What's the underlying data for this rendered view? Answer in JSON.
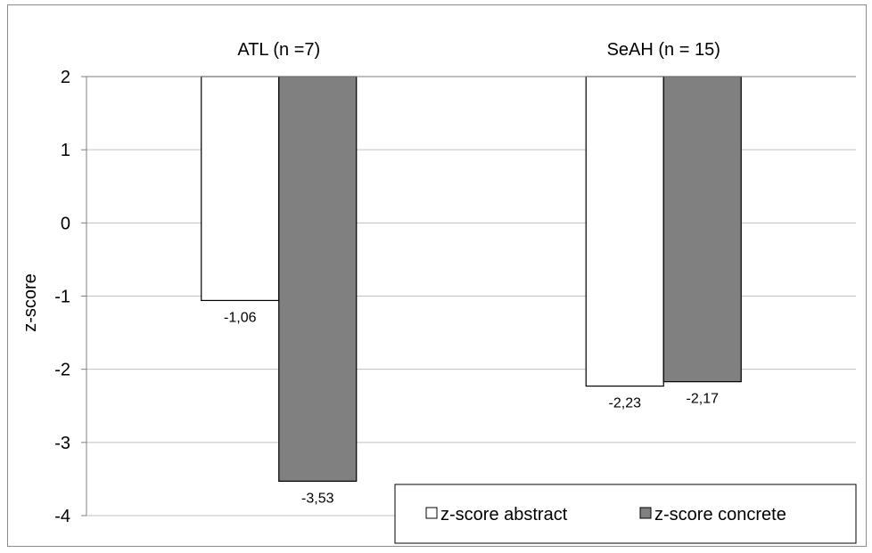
{
  "chart_data": {
    "type": "bar",
    "categories": [
      "ATL (n =7)",
      "SeAH (n = 15)"
    ],
    "series": [
      {
        "name": "z-score abstract",
        "values": [
          -1.06,
          -2.23
        ],
        "labels": [
          "-1,06",
          "-2,23"
        ],
        "color": "#ffffff"
      },
      {
        "name": "z-score concrete",
        "values": [
          -3.53,
          -2.17
        ],
        "labels": [
          "-3,53",
          "-2,17"
        ],
        "color": "#808080"
      }
    ],
    "ylabel": "z-score",
    "xlabel": "",
    "title": "",
    "ylim": [
      -4,
      2
    ],
    "yticks": [
      2,
      1,
      0,
      -1,
      -2,
      -3,
      -4
    ],
    "category_axis_position": "top",
    "grid": true,
    "legend": "bottom-right"
  }
}
